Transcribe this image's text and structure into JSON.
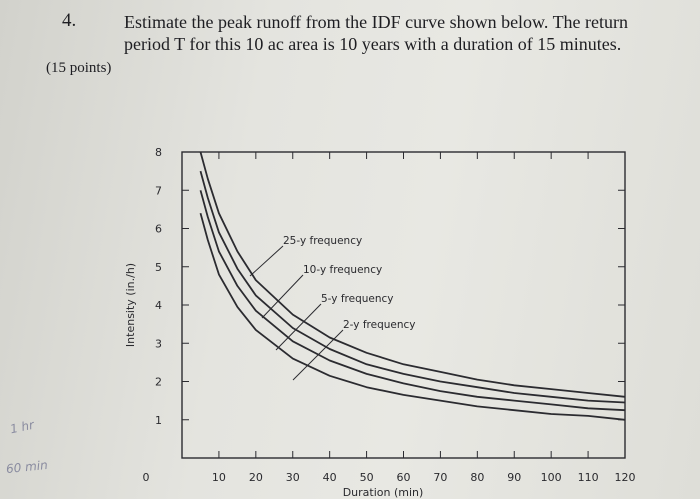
{
  "question": {
    "number": "4.",
    "line1": "Estimate the peak runoff from the IDF curve shown below. The return",
    "line2": "period T for this 10 ac area is 10 years with a duration of 15 minutes.",
    "points": "(15 points)"
  },
  "handwriting": {
    "note1": "1 hr",
    "note2": "60 min"
  },
  "chart_data": {
    "type": "line",
    "xlabel": "Duration (min)",
    "ylabel": "Intensity (in./h)",
    "xlim": [
      0,
      120
    ],
    "ylim": [
      0,
      8
    ],
    "x_ticks": [
      0,
      10,
      20,
      30,
      40,
      50,
      60,
      70,
      80,
      90,
      100,
      110,
      120
    ],
    "y_ticks": [
      1,
      2,
      3,
      4,
      5,
      6,
      7,
      8
    ],
    "grid": false,
    "series": [
      {
        "name": "25-y frequency",
        "x": [
          5,
          7,
          10,
          15,
          20,
          30,
          40,
          50,
          60,
          70,
          80,
          90,
          100,
          110,
          120
        ],
        "y": [
          8.0,
          7.3,
          6.4,
          5.4,
          4.65,
          3.75,
          3.15,
          2.75,
          2.45,
          2.25,
          2.05,
          1.9,
          1.8,
          1.7,
          1.6
        ]
      },
      {
        "name": "10-y frequency",
        "x": [
          5,
          7,
          10,
          15,
          20,
          30,
          40,
          50,
          60,
          70,
          80,
          90,
          100,
          110,
          120
        ],
        "y": [
          7.5,
          6.8,
          5.9,
          4.95,
          4.25,
          3.4,
          2.85,
          2.45,
          2.2,
          2.0,
          1.85,
          1.7,
          1.6,
          1.5,
          1.45
        ]
      },
      {
        "name": "5-y frequency",
        "x": [
          5,
          7,
          10,
          15,
          20,
          30,
          40,
          50,
          60,
          70,
          80,
          90,
          100,
          110,
          120
        ],
        "y": [
          7.0,
          6.3,
          5.4,
          4.5,
          3.85,
          3.05,
          2.55,
          2.2,
          1.95,
          1.75,
          1.6,
          1.5,
          1.4,
          1.3,
          1.25
        ]
      },
      {
        "name": "2-y frequency",
        "x": [
          5,
          7,
          10,
          15,
          20,
          30,
          40,
          50,
          60,
          70,
          80,
          90,
          100,
          110,
          120
        ],
        "y": [
          6.4,
          5.7,
          4.8,
          3.95,
          3.35,
          2.6,
          2.15,
          1.85,
          1.65,
          1.5,
          1.35,
          1.25,
          1.15,
          1.1,
          1.0
        ]
      }
    ],
    "annotations": [
      "25-y frequency",
      "10-y frequency",
      "5-y frequency",
      "2-y frequency"
    ],
    "colors": {
      "curve": "#2b2b30",
      "paper": "#e4e4df"
    }
  }
}
